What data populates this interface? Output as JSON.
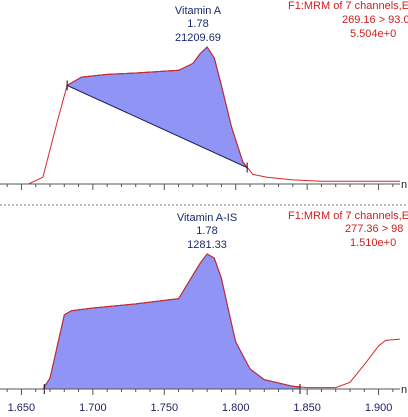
{
  "chart_data": [
    {
      "type": "line",
      "peak": {
        "name": "Vitamin A",
        "rt": "1.78",
        "area": "21209.69"
      },
      "info": [
        "F1:MRM of 7 channels,E",
        "269.16 > 93.0",
        "5.504e+0"
      ],
      "axis_unit": "n",
      "x_range": [
        1.635,
        1.915
      ],
      "y_range": [
        0,
        1.0
      ],
      "trace": [
        [
          1.635,
          0
        ],
        [
          1.655,
          0
        ],
        [
          1.665,
          0.05
        ],
        [
          1.675,
          0.45
        ],
        [
          1.682,
          0.72
        ],
        [
          1.692,
          0.78
        ],
        [
          1.71,
          0.8
        ],
        [
          1.73,
          0.81
        ],
        [
          1.76,
          0.83
        ],
        [
          1.77,
          0.88
        ],
        [
          1.775,
          0.95
        ],
        [
          1.78,
          1.0
        ],
        [
          1.785,
          0.92
        ],
        [
          1.79,
          0.72
        ],
        [
          1.797,
          0.42
        ],
        [
          1.805,
          0.16
        ],
        [
          1.812,
          0.07
        ],
        [
          1.822,
          0.05
        ],
        [
          1.84,
          0.03
        ],
        [
          1.86,
          0.02
        ],
        [
          1.88,
          0.02
        ],
        [
          1.915,
          0.02
        ]
      ],
      "integration_start": 1.682,
      "integration_end": 1.808,
      "integration_base": [
        0.72,
        0.12
      ]
    },
    {
      "type": "line",
      "peak": {
        "name": "Vitamin A-IS",
        "rt": "1.78",
        "area": "1281.33"
      },
      "info": [
        "F1:MRM of 7 channels,E",
        "277.36 > 98",
        "1.510e+0"
      ],
      "axis_unit": "n",
      "x_range": [
        1.635,
        1.915
      ],
      "y_range": [
        0,
        1.0
      ],
      "x_ticks": [
        "1.650",
        "1.700",
        "1.750",
        "1.800",
        "1.850",
        "1.900"
      ],
      "trace": [
        [
          1.635,
          0
        ],
        [
          1.665,
          0
        ],
        [
          1.67,
          0.08
        ],
        [
          1.68,
          0.55
        ],
        [
          1.685,
          0.58
        ],
        [
          1.7,
          0.6
        ],
        [
          1.73,
          0.63
        ],
        [
          1.76,
          0.67
        ],
        [
          1.775,
          0.93
        ],
        [
          1.78,
          1.0
        ],
        [
          1.785,
          0.97
        ],
        [
          1.79,
          0.82
        ],
        [
          1.795,
          0.58
        ],
        [
          1.8,
          0.35
        ],
        [
          1.81,
          0.15
        ],
        [
          1.82,
          0.07
        ],
        [
          1.84,
          0.02
        ],
        [
          1.85,
          0.01
        ],
        [
          1.87,
          0.01
        ],
        [
          1.88,
          0.05
        ],
        [
          1.89,
          0.18
        ],
        [
          1.9,
          0.32
        ],
        [
          1.905,
          0.36
        ],
        [
          1.915,
          0.37
        ]
      ],
      "integration_start": 1.666,
      "integration_end": 1.845,
      "integration_base": [
        0,
        0
      ]
    }
  ]
}
